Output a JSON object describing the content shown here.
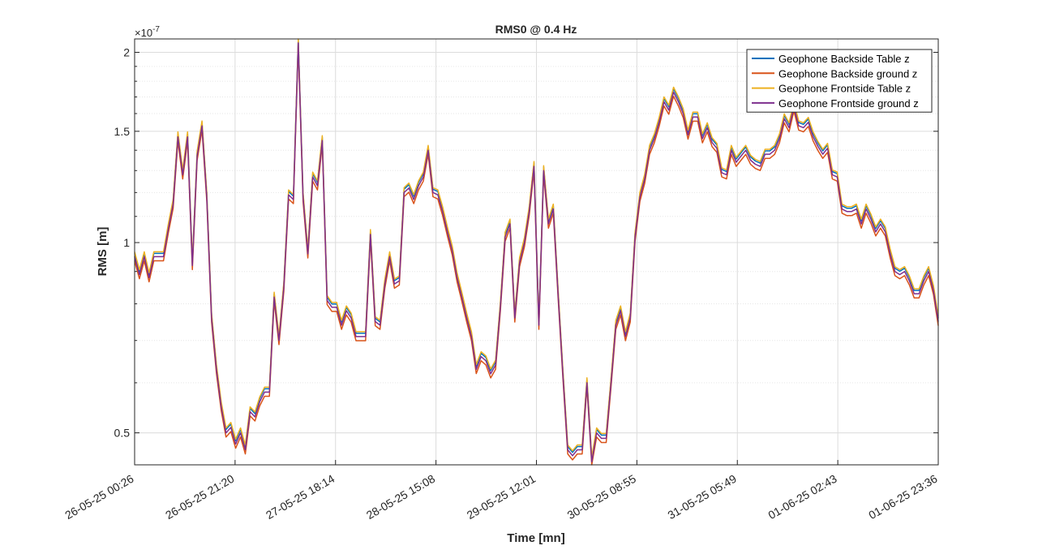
{
  "chart_data": {
    "type": "line",
    "title": "RMS0 @ 0.4 Hz",
    "xlabel": "Time [mn]",
    "ylabel": "RMS [m]",
    "y_exponent_label": "×10",
    "y_exponent_power": "-7",
    "yscale": "log",
    "ylim": [
      0.445,
      2.1
    ],
    "y_ticks": [
      0.5,
      1,
      1.5,
      2
    ],
    "y_tick_labels": [
      "0.5",
      "1",
      "1.5",
      "2"
    ],
    "y_minor_ticks": [
      0.6,
      0.7,
      0.8,
      0.9,
      1.1,
      1.2,
      1.3,
      1.4,
      1.6,
      1.7,
      1.8,
      1.9
    ],
    "xlim": [
      "26-05-25 00:26",
      "01-06-25 23:36"
    ],
    "x_tick_labels": [
      "26-05-25 00:26",
      "26-05-25 21:20",
      "27-05-25 18:14",
      "28-05-25 15:08",
      "29-05-25 12:01",
      "30-05-25 08:55",
      "31-05-25 05:49",
      "01-06-25 02:43",
      "01-06-25 23:36"
    ],
    "grid": true,
    "legend_position": "top-right",
    "series": [
      {
        "name": "Geophone Backside Table z",
        "color": "#0072BD",
        "offset": 1.012
      },
      {
        "name": "Geophone Backside ground z",
        "color": "#D95319",
        "offset": 0.985
      },
      {
        "name": "Geophone Frontside Table z",
        "color": "#EDB120",
        "offset": 1.018
      },
      {
        "name": "Geophone Frontside ground z",
        "color": "#7E2F8E",
        "offset": 1.0
      }
    ],
    "base_values": [
      0.95,
      0.89,
      0.95,
      0.88,
      0.95,
      0.95,
      0.95,
      1.05,
      1.15,
      1.47,
      1.28,
      1.47,
      0.92,
      1.37,
      1.53,
      1.18,
      0.76,
      0.63,
      0.55,
      0.5,
      0.51,
      0.48,
      0.5,
      0.47,
      0.54,
      0.53,
      0.56,
      0.58,
      0.58,
      0.82,
      0.7,
      0.85,
      1.19,
      1.17,
      2.07,
      1.18,
      0.96,
      1.27,
      1.23,
      1.45,
      0.81,
      0.79,
      0.79,
      0.74,
      0.78,
      0.76,
      0.71,
      0.71,
      0.71,
      1.03,
      0.75,
      0.74,
      0.86,
      0.95,
      0.86,
      0.87,
      1.2,
      1.22,
      1.17,
      1.23,
      1.27,
      1.4,
      1.2,
      1.19,
      1.12,
      1.04,
      0.97,
      0.88,
      0.82,
      0.76,
      0.71,
      0.63,
      0.66,
      0.65,
      0.62,
      0.64,
      0.79,
      1.02,
      1.07,
      0.76,
      0.93,
      1.0,
      1.12,
      1.32,
      0.74,
      1.3,
      1.07,
      1.13,
      0.83,
      0.62,
      0.47,
      0.46,
      0.47,
      0.47,
      0.6,
      0.45,
      0.5,
      0.49,
      0.49,
      0.6,
      0.74,
      0.78,
      0.71,
      0.76,
      1.02,
      1.18,
      1.26,
      1.4,
      1.46,
      1.55,
      1.67,
      1.62,
      1.73,
      1.67,
      1.6,
      1.48,
      1.58,
      1.58,
      1.46,
      1.52,
      1.44,
      1.41,
      1.29,
      1.28,
      1.4,
      1.34,
      1.37,
      1.4,
      1.35,
      1.33,
      1.32,
      1.38,
      1.38,
      1.4,
      1.46,
      1.57,
      1.52,
      1.64,
      1.53,
      1.52,
      1.55,
      1.47,
      1.42,
      1.38,
      1.41,
      1.28,
      1.27,
      1.13,
      1.12,
      1.12,
      1.13,
      1.07,
      1.13,
      1.09,
      1.04,
      1.07,
      1.04,
      0.96,
      0.9,
      0.89,
      0.9,
      0.87,
      0.83,
      0.83,
      0.87,
      0.9,
      0.84,
      0.75
    ]
  }
}
